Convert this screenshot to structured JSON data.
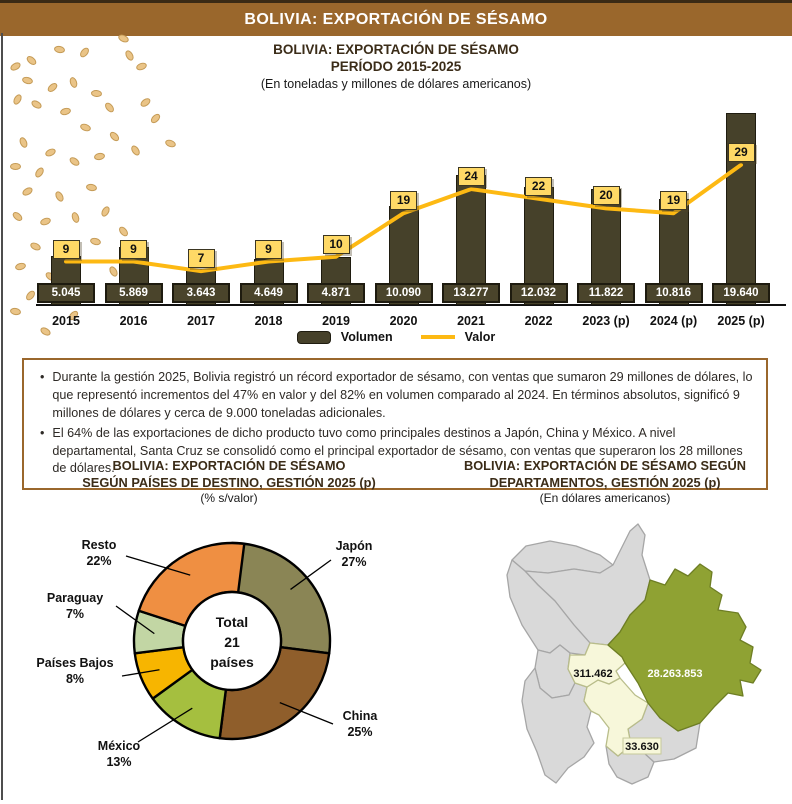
{
  "banner": {
    "title": "BOLIVIA: EXPORTACIÓN DE SÉSAMO"
  },
  "chart_data": [
    {
      "type": "bar",
      "combo": "bar+line",
      "title": "BOLIVIA: EXPORTACIÓN DE SÉSAMO",
      "subtitle": "PERÍODO 2015-2025",
      "units_note": "(En toneladas y millones de dólares americanos)",
      "categories": [
        "2015",
        "2016",
        "2017",
        "2018",
        "2019",
        "2020",
        "2021",
        "2022",
        "2023 (p)",
        "2024 (p)",
        "2025 (p)"
      ],
      "series": [
        {
          "name": "Volumen",
          "type": "bar",
          "unit": "toneladas",
          "values": [
            5045,
            5869,
            3643,
            4649,
            4871,
            10090,
            13277,
            12032,
            11822,
            10816,
            19640
          ],
          "labels": [
            "5.045",
            "5.869",
            "3.643",
            "4.649",
            "4.871",
            "10.090",
            "13.277",
            "12.032",
            "11.822",
            "10.816",
            "19.640"
          ],
          "color": "#46412a"
        },
        {
          "name": "Valor",
          "type": "line",
          "unit": "millones de dólares",
          "values": [
            9,
            9,
            7,
            9,
            10,
            19,
            24,
            22,
            20,
            19,
            29
          ],
          "color": "#fdb913"
        }
      ],
      "legend_position": "bottom",
      "value_label_bg": "#ffd966"
    },
    {
      "type": "pie",
      "donut": true,
      "title": "BOLIVIA: EXPORTACIÓN DE SÉSAMO",
      "subtitle": "SEGÚN PAÍSES DE DESTINO, GESTIÓN 2025 (p)",
      "units_note": "(% s/valor)",
      "center_label_lines": [
        "Total",
        "21",
        "países"
      ],
      "slices": [
        {
          "label": "Japón",
          "value": 27,
          "display": "27%",
          "color": "#8a8555"
        },
        {
          "label": "China",
          "value": 25,
          "display": "25%",
          "color": "#8f5e2b"
        },
        {
          "label": "México",
          "value": 13,
          "display": "13%",
          "color": "#a5bf3f"
        },
        {
          "label": "Países Bajos",
          "value": 8,
          "display": "8%",
          "color": "#f7b500"
        },
        {
          "label": "Paraguay",
          "value": 7,
          "display": "7%",
          "color": "#c2d6a4"
        },
        {
          "label": "Resto",
          "value": 22,
          "display": "22%",
          "color": "#ef8f42"
        }
      ]
    },
    {
      "type": "map",
      "title": "BOLIVIA: EXPORTACIÓN DE SÉSAMO SEGÚN",
      "subtitle": "DEPARTAMENTOS, GESTIÓN 2025 (p)",
      "units_note": "(En dólares americanos)",
      "colors": {
        "green": "#8fa233",
        "pale": "#f7f7da",
        "gray": "#d9d9d9"
      },
      "value_labels": {
        "green": "28.263.853",
        "pale_center": "311.462",
        "pale_south": "33.630"
      }
    }
  ],
  "summary_box": {
    "bullets": [
      "Durante la gestión 2025, Bolivia registró un récord exportador de sésamo, con ventas que sumaron 29 millones de dólares, lo que representó incrementos del 47% en valor y del 82% en volumen comparado al 2024. En términos absolutos, significó 9 millones de dólares y cerca de 9.000 toneladas adicionales.",
      "El 64% de las exportaciones de dicho producto tuvo como principales destinos a Japón, China y México. A nivel departamental, Santa Cruz se consolidó como el principal exportador de sésamo, con ventas que superaron los 28 millones de dólares."
    ]
  },
  "colors": {
    "banner_bg": "#9a672c",
    "border_brown": "#9a672c"
  }
}
